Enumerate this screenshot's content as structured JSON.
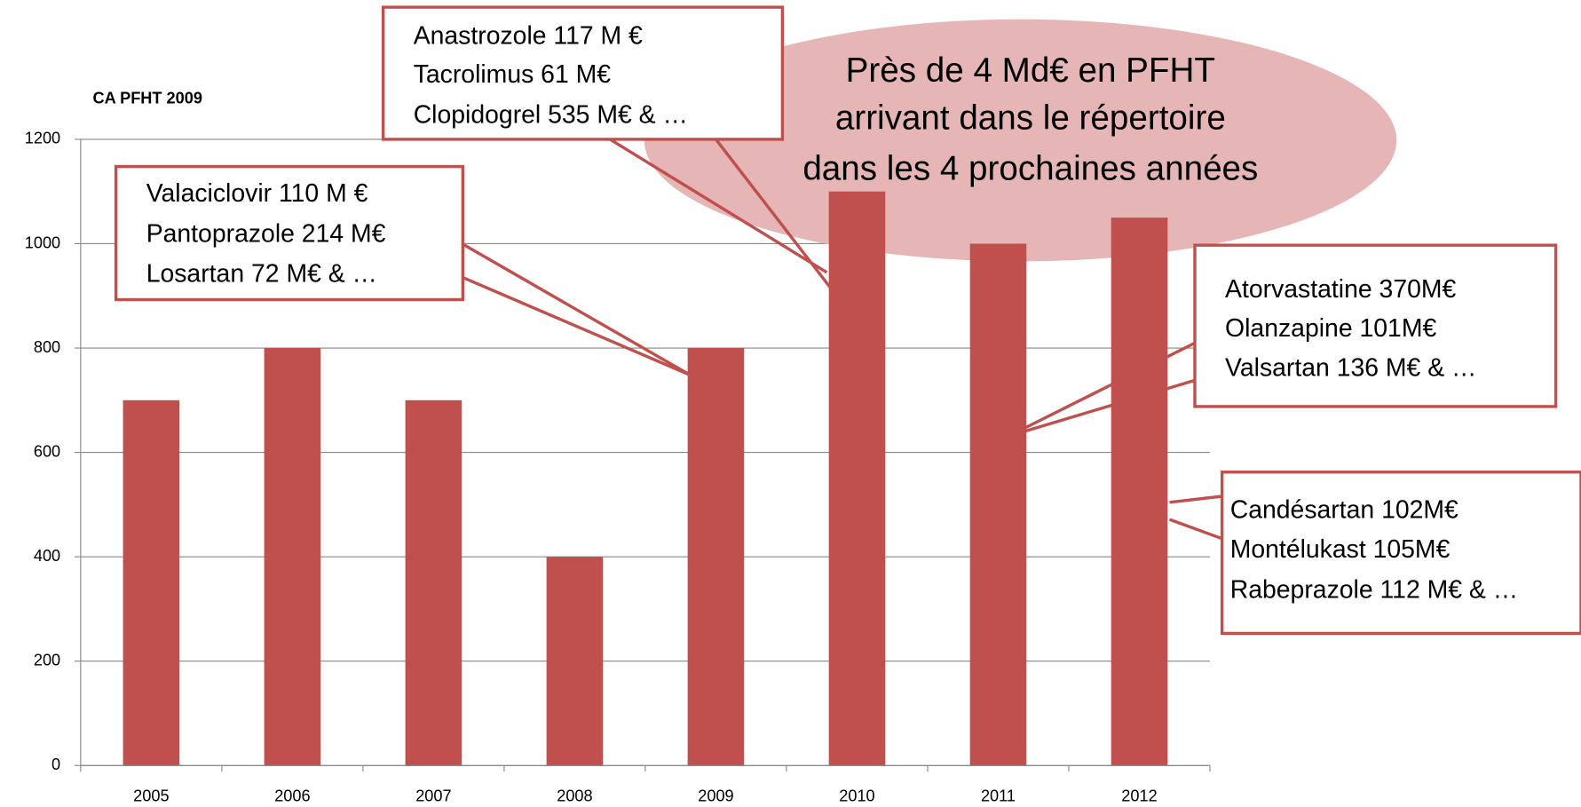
{
  "chart_data": {
    "type": "bar",
    "title": "CA PFHT 2009",
    "categories": [
      "2005",
      "2006",
      "2007",
      "2008",
      "2009",
      "2010",
      "2011",
      "2012"
    ],
    "values": [
      700,
      800,
      700,
      400,
      800,
      1100,
      1000,
      1050
    ],
    "color": "#c0504d",
    "ylim": [
      0,
      1200
    ],
    "yticks": [
      0,
      200,
      400,
      600,
      800,
      1000,
      1200
    ],
    "grid": true,
    "callouts": [
      {
        "lines": [
          "Anastrozole 117 M €",
          "Tacrolimus  61 M€",
          "Clopidogrel 535 M€ & …"
        ]
      },
      {
        "lines": [
          "Valaciclovir 110 M €",
          "Pantoprazole 214 M€",
          "Losartan 72 M€ & …"
        ]
      },
      {
        "lines": [
          "Atorvastatine 370M€",
          "Olanzapine 101M€",
          "Valsartan 136 M€ & …"
        ]
      },
      {
        "lines": [
          "Candésartan 102M€",
          "Montélukast 105M€",
          "Rabeprazole 112 M€ & …"
        ]
      }
    ],
    "highlight": [
      "Près de 4 Md€ en PFHT",
      "arrivant dans le répertoire",
      "dans les 4 prochaines années"
    ]
  }
}
